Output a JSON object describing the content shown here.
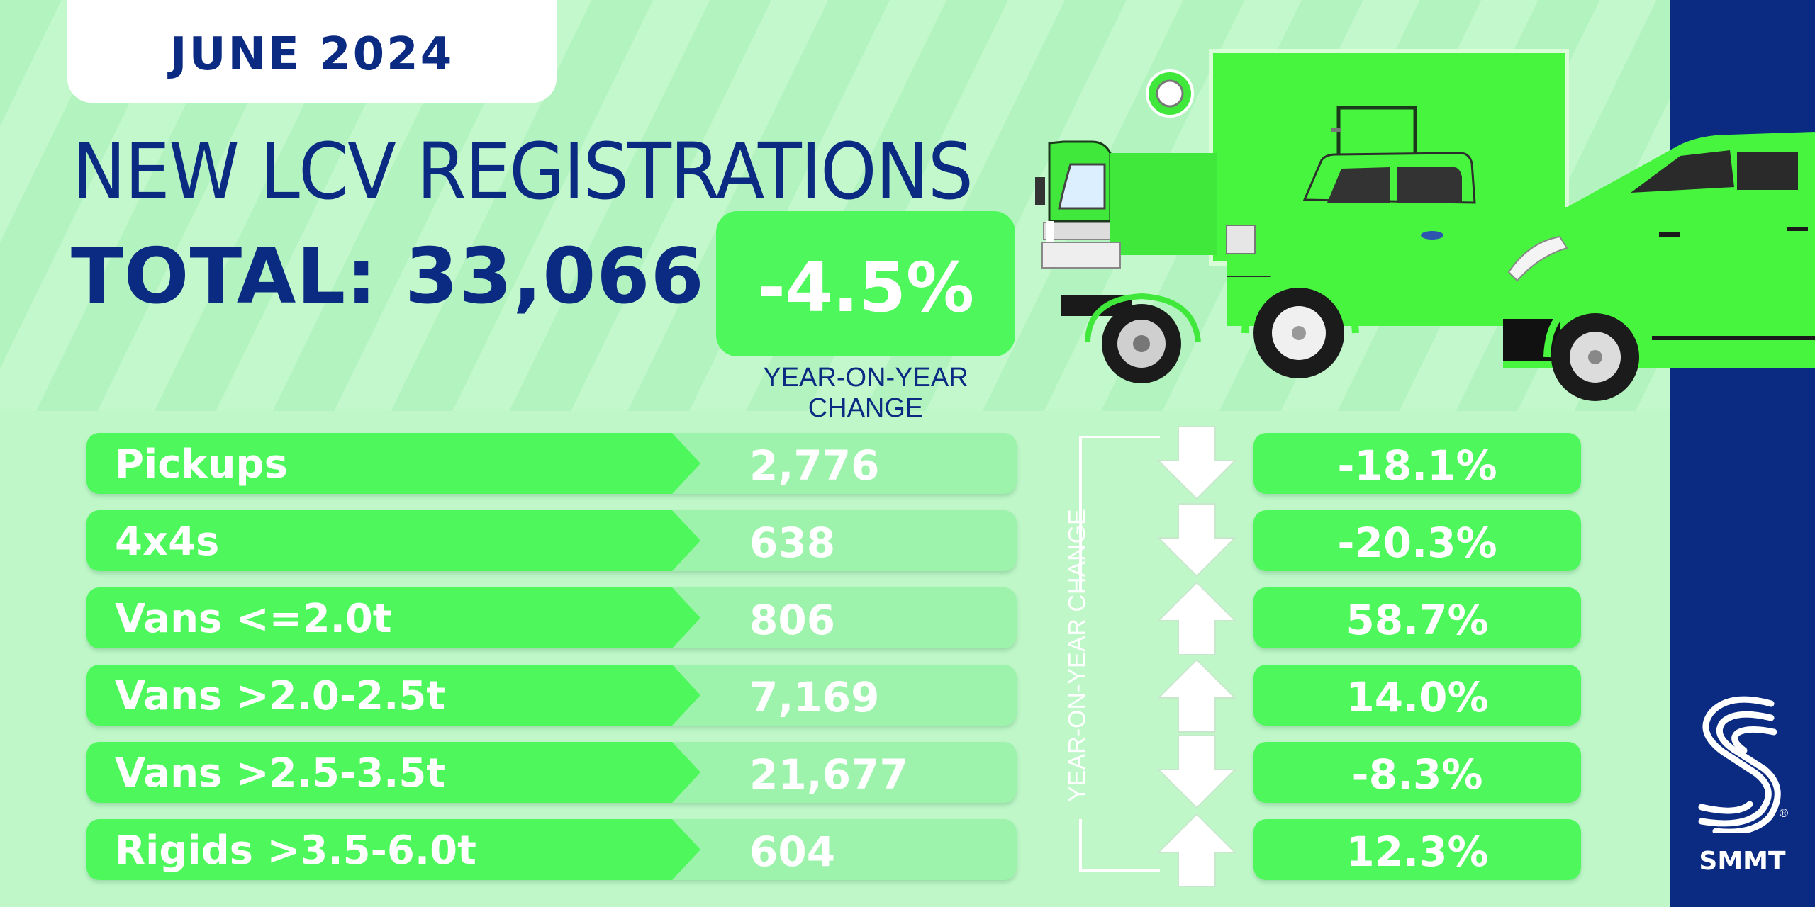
{
  "header": {
    "date": "JUNE 2024",
    "title": "NEW LCV REGISTRATIONS",
    "total": "TOTAL: 33,066",
    "yoy_value": "-4.5%",
    "yoy_caption": "YEAR-ON-YEAR CHANGE"
  },
  "table": {
    "side_label": "YEAR-ON-YEAR CHANGE",
    "rows": [
      {
        "label": "Pickups",
        "value": "2,776",
        "change": "-18.1%",
        "direction": "down"
      },
      {
        "label": "4x4s",
        "value": "638",
        "change": "-20.3%",
        "direction": "down"
      },
      {
        "label": "Vans <=2.0t",
        "value": "806",
        "change": "58.7%",
        "direction": "up"
      },
      {
        "label": "Vans >2.0-2.5t",
        "value": "7,169",
        "change": "14.0%",
        "direction": "up"
      },
      {
        "label": "Vans >2.5-3.5t",
        "value": "21,677",
        "change": "-8.3%",
        "direction": "down"
      },
      {
        "label": "Rigids >3.5-6.0t",
        "value": "604",
        "change": "12.3%",
        "direction": "up"
      }
    ]
  },
  "brand": {
    "name": "SMMT",
    "logo_icon": "smmt-s-logo-icon",
    "registered_mark": "®"
  },
  "colors": {
    "navy": "#0b2a82",
    "green": "#4ef75b",
    "light_green": "#bff7c9"
  }
}
